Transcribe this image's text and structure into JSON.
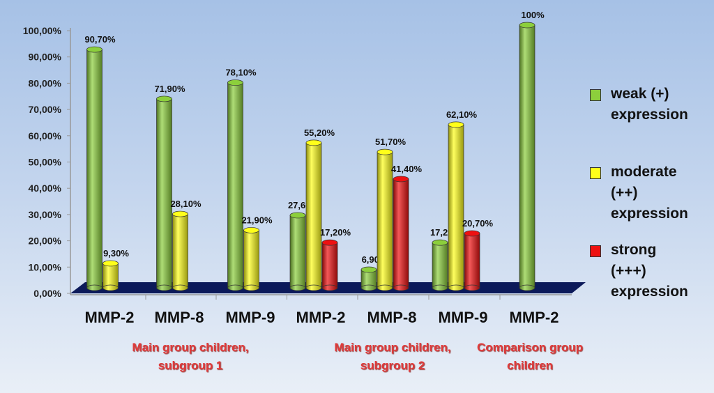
{
  "chart_data": {
    "type": "bar",
    "style": "3d-cylinder",
    "categories": [
      "MMP-2",
      "MMP-8",
      "MMP-9",
      "MMP-2",
      "MMP-8",
      "MMP-9",
      "MMP-2"
    ],
    "groups": [
      {
        "label": "Main group children, subgroup 1",
        "line1": "Main group children,",
        "line2": "subgroup 1"
      },
      {
        "label": "Main group children, subgroup 2",
        "line1": "Main group children,",
        "line2": "subgroup 2"
      },
      {
        "label": "Comparison group children",
        "line1": "Comparison group",
        "line2": "children"
      }
    ],
    "series": [
      {
        "name": "weak (+) expression",
        "line1": "weak (+)",
        "line2": "expression",
        "color": "#8ccf3c",
        "values": [
          90.7,
          71.9,
          78.1,
          27.6,
          6.9,
          17.2,
          100
        ],
        "labels": [
          "90,70%",
          "71,90%",
          "78,10%",
          "27,60%",
          "6,90%",
          "17,20%",
          "100%"
        ]
      },
      {
        "name": "moderate (++) expression",
        "line1": "moderate",
        "line2": "(++)",
        "line3": "expression",
        "color": "#ffff1a",
        "values": [
          9.3,
          28.1,
          21.9,
          55.2,
          51.7,
          62.1,
          null
        ],
        "labels": [
          "9,30%",
          "28,10%",
          "21,90%",
          "55,20%",
          "51,70%",
          "62,10%",
          null
        ]
      },
      {
        "name": "strong (+++) expression",
        "line1": "strong",
        "line2": "(+++)",
        "line3": "expression",
        "color": "#ee1111",
        "values": [
          null,
          null,
          null,
          17.2,
          41.4,
          20.7,
          null
        ],
        "labels": [
          null,
          null,
          null,
          "17,20%",
          "41,40%",
          "20,70%",
          null
        ]
      }
    ],
    "yticks": [
      "0,00%",
      "10,00%",
      "20,00%",
      "30,00%",
      "40,00%",
      "50,00%",
      "60,00%",
      "70,00%",
      "80,00%",
      "90,00%",
      "100,00%"
    ],
    "ylim": [
      0,
      100
    ],
    "grid": false,
    "legend": "right"
  }
}
